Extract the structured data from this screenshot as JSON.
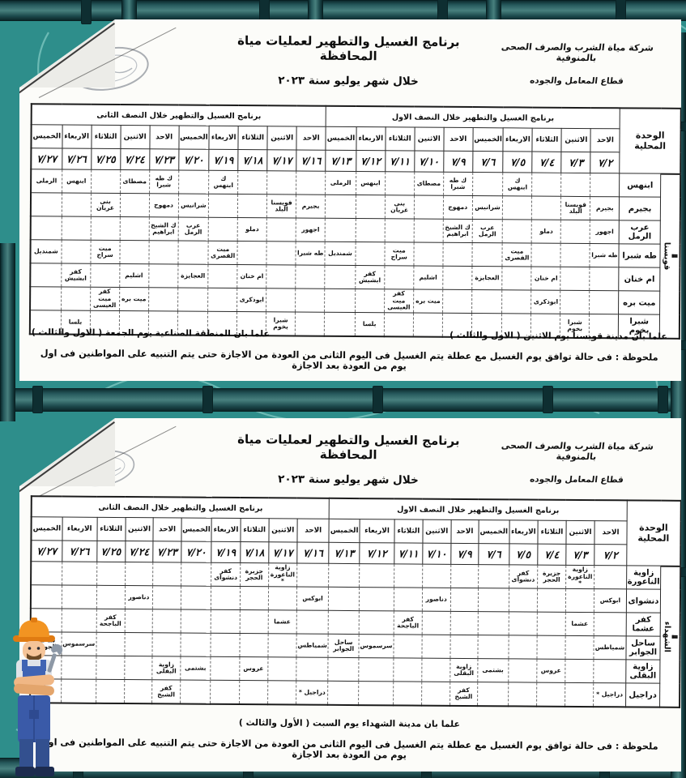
{
  "page": {
    "background_color": "#2e8e8b",
    "pipe_color": "#1d4a4d",
    "card_color": "#fcfcf9",
    "swirl_color": "#a9e5de"
  },
  "cards": [
    {
      "org_line1": "شركة مياة الشرب والصرف الصحى بالمنوفية",
      "org_line2": "قطاع المعامل والجوده",
      "title": "برنامج الغسيل والتطهير لعمليات مياة المحافظة",
      "subtitle": "خلال شهر يوليو سنة   ٢٠٢٣",
      "unit_header": "الوحدة المحلية",
      "half1_header": "برنامج الغسيل والتطهير خلال النصف الاول",
      "half2_header": "برنامج الغسيل والتطهير خلال النصف الثانى",
      "day_names": [
        "الاحد",
        "الاثنين",
        "الثلاثاء",
        "الاربعاء",
        "الخميس",
        "الاحد",
        "الاثنين",
        "الثلاثاء",
        "الاربعاء",
        "الخميس"
      ],
      "dates_half1": [
        "٧/٢",
        "٧/٣",
        "٧/٤",
        "٧/٥",
        "٧/٦",
        "٧/٩",
        "٧/١٠",
        "٧/١١",
        "٧/١٢",
        "٧/١٣"
      ],
      "dates_half2": [
        "٧/١٦",
        "٧/١٧",
        "٧/١٨",
        "٧/١٩",
        "٧/٢٠",
        "٧/٢٣",
        "٧/٢٤",
        "٧/٢٥",
        "٧/٢٦",
        "٧/٢٧"
      ],
      "district": "قويسنا",
      "rows": [
        {
          "unit": "ابنهس",
          "cells": {
            "٧/٥": "ك ابنهس",
            "٧/٩": "ك طه شبرا",
            "٧/١٠": "مصطاى",
            "٧/١٢": "ابنهس",
            "٧/١٣": "الرملى",
            "٧/١٩": "ك ابنهس",
            "٧/٢٣": "ك طه شبرا",
            "٧/٢٤": "مصطاى",
            "٧/٢٦": "ابنهس",
            "٧/٢٧": "الرملى"
          }
        },
        {
          "unit": "بجيرم",
          "cells": {
            "٧/٢": "بجيرم",
            "٧/٣": "قويسنا البلد",
            "٧/٦": "شرانيس",
            "٧/٩": "دمهوج",
            "٧/١١": "بنى غريان",
            "٧/١٦": "بجيرم",
            "٧/١٧": "قويسنا البلد",
            "٧/٢٠": "شرانيس",
            "٧/٢٣": "دمهوج",
            "٧/٢٥": "بنى غريان"
          }
        },
        {
          "unit": "عرب الرمل",
          "cells": {
            "٧/٢": "اجهور",
            "٧/٤": "دملو",
            "٧/٦": "عرب الرمل",
            "٧/٩": "ك الشيخ ابراهيم",
            "٧/١٦": "اجهور",
            "٧/١٨": "دملو",
            "٧/٢٠": "عرب الرمل",
            "٧/٢٣": "ك الشيخ ابراهيم"
          }
        },
        {
          "unit": "طه شبرا",
          "cells": {
            "٧/٢": "طه شبرا",
            "٧/٥": "ميت القصرى",
            "٧/١١": "ميت سراج",
            "٧/١٣": "شمنديل",
            "٧/١٦": "طه شبرا",
            "٧/١٩": "ميت القصرى",
            "٧/٢٥": "ميت سراج",
            "٧/٢٧": "شمنديل"
          }
        },
        {
          "unit": "ام خنان",
          "cells": {
            "٧/٤": "ام خنان",
            "٧/٦": "العجايزة",
            "٧/١٠": "اشليم",
            "٧/١٢": "كفر ابشيش",
            "٧/١٨": "ام خنان",
            "٧/٢٠": "العجايزة",
            "٧/٢٤": "اشليم",
            "٧/٢٦": "كفر ابشيش"
          }
        },
        {
          "unit": "ميت بره",
          "cells": {
            "٧/٤": "ابوذكرى",
            "٧/١٠": "ميت بره",
            "٧/١١": "كفر ميت العيسى",
            "٧/١٨": "ابوذكرى",
            "٧/٢٤": "ميت بره",
            "٧/٢٥": "كفر ميت العيسى"
          }
        },
        {
          "unit": "شبرا بخوم",
          "cells": {
            "٧/٣": "شبرا بخوم",
            "٧/١٢": "بلسا",
            "٧/١٧": "شبرا بخوم",
            "٧/٢٦": "بلسا"
          }
        }
      ],
      "note_right": "علما بأن مدينة قويسنا يوم الاثنين ( الاول والثالث )",
      "note_left": "علما بان المنطقة الصناعية يوم الجمعة ( الاول والثالث )",
      "footnote": "ملحوظة : فى حالة توافق يوم الغسيل مع عطلة يتم الغسيل فى اليوم الثانى من العودة من الاجازة حتى يتم التنبيه على المواطنين فى اول يوم من العودة بعد الاجازة"
    },
    {
      "org_line1": "شركة مياة الشرب والصرف الصحى بالمنوفية",
      "org_line2": "قطاع المعامل والجوده",
      "title": "برنامج الغسيل والتطهير لعمليات مياة المحافظة",
      "subtitle": "خلال شهر يوليو سنة   ٢٠٢٣",
      "unit_header": "الوحدة المحلية",
      "half1_header": "برنامج الغسيل والتطهير خلال النصف الاول",
      "half2_header": "برنامج الغسيل والتطهير خلال النصف الثانى",
      "day_names": [
        "الاحد",
        "الاثنين",
        "الثلاثاء",
        "الاربعاء",
        "الخميس",
        "الاحد",
        "الاثنين",
        "الثلاثاء",
        "الاربعاء",
        "الخميس"
      ],
      "dates_half1": [
        "٧/٢",
        "٧/٣",
        "٧/٤",
        "٧/٥",
        "٧/٦",
        "٧/٩",
        "٧/١٠",
        "٧/١١",
        "٧/١٢",
        "٧/١٣"
      ],
      "dates_half2": [
        "٧/١٦",
        "٧/١٧",
        "٧/١٨",
        "٧/١٩",
        "٧/٢٠",
        "٧/٢٣",
        "٧/٢٤",
        "٧/٢٥",
        "٧/٢٦",
        "٧/٢٧"
      ],
      "district": "الشهداء",
      "rows": [
        {
          "unit": "زاوية الناعورة",
          "cells": {
            "٧/٣": "زاوية الناعورة *",
            "٧/٤": "جزيرة الحجر",
            "٧/٥": "كفر دنشواى",
            "٧/١٧": "زاوية الناعورة *",
            "٧/١٨": "جزيرة الحجر",
            "٧/١٩": "كفر دنشواى"
          }
        },
        {
          "unit": "دنشواى",
          "cells": {
            "٧/٢": "ابوكس",
            "٧/١٠": "دناصور",
            "٧/١٦": "ابوكس",
            "٧/٢٤": "دناصور"
          }
        },
        {
          "unit": "كفر عشما",
          "cells": {
            "٧/٣": "عشما",
            "٧/١١": "كفر الباجحة",
            "٧/١٧": "عشما",
            "٧/٢٥": "كفر الباجحة"
          }
        },
        {
          "unit": "ساحل الجوابر",
          "cells": {
            "٧/٢": "شمياطس",
            "٧/١٢": "سرسموس",
            "٧/١٣": "ساحل الجوابر",
            "٧/١٦": "شمياطس",
            "٧/٢٦": "سرسموس",
            "٧/٢٧": "ساحل الجوابر"
          }
        },
        {
          "unit": "زاوية البقلى",
          "cells": {
            "٧/٤": "عروس",
            "٧/٦": "بشتمى",
            "٧/٩": "زاوية البقلى",
            "٧/١٨": "عروس",
            "٧/٢٠": "بشتمى",
            "٧/٢٣": "زاوية البقلى"
          }
        },
        {
          "unit": "دراجيل",
          "cells": {
            "٧/٢": "دراجيل *",
            "٧/٩": "كفر الشيخ",
            "٧/١٦": "دراجيل *",
            "٧/٢٣": "كفر الشيخ"
          }
        }
      ],
      "note_center": "علما بان مدينة الشهداء يوم السبت ( الأول والثالث )",
      "footnote": "ملحوظة : فى حالة توافق يوم الغسيل مع عطلة يتم الغسيل فى اليوم الثانى من العودة من الاجازة حتى يتم التنبيه على المواطنين فى اول يوم من العودة بعد الاجازة"
    }
  ]
}
